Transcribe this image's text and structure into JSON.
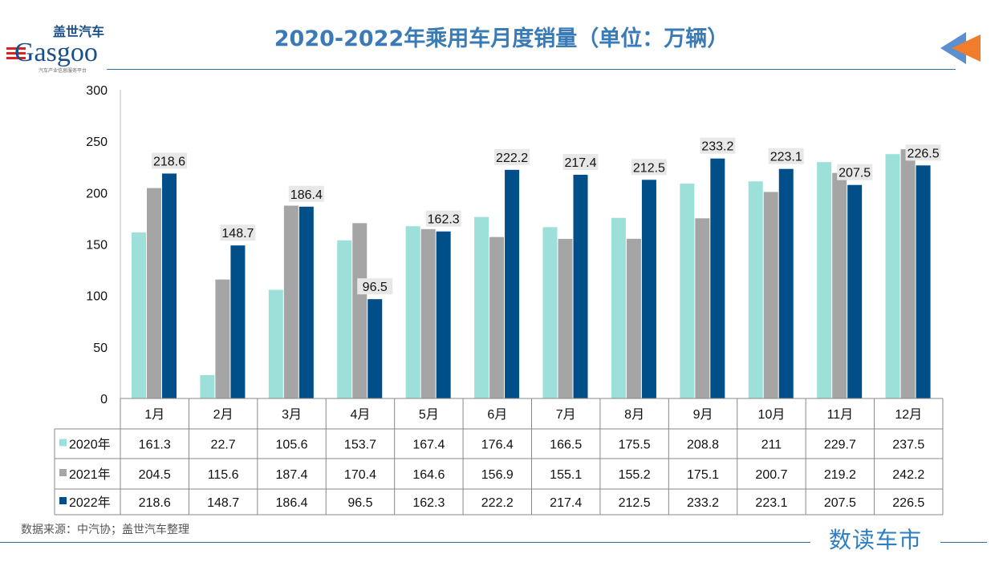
{
  "title": "2020-2022年乘用车月度销量（单位：万辆）",
  "logo": {
    "cn": "盖世汽车",
    "en": "Gasgoo",
    "tagline": "汽车产业信息服务平台"
  },
  "source": "数据来源：中汽协；盖世汽车整理",
  "brand": "数读车市",
  "colors": {
    "2020": "#9de0d9",
    "2021": "#a5a5a5",
    "2022": "#004f88",
    "title": "#3a7bb5"
  },
  "chart_data": {
    "type": "bar",
    "title": "2020-2022年乘用车月度销量（单位：万辆）",
    "categories": [
      "1月",
      "2月",
      "3月",
      "4月",
      "5月",
      "6月",
      "7月",
      "8月",
      "9月",
      "10月",
      "11月",
      "12月"
    ],
    "ylim": [
      0,
      300
    ],
    "yticks": [
      0,
      50,
      100,
      150,
      200,
      250,
      300
    ],
    "grid": false,
    "legend": "data-table",
    "series": [
      {
        "name": "2020年",
        "values": [
          161.3,
          22.7,
          105.6,
          153.7,
          167.4,
          176.4,
          166.5,
          175.5,
          208.8,
          211,
          229.7,
          237.5
        ]
      },
      {
        "name": "2021年",
        "values": [
          204.5,
          115.6,
          187.4,
          170.4,
          164.6,
          156.9,
          155.1,
          155.2,
          175.1,
          200.7,
          219.2,
          242.2
        ]
      },
      {
        "name": "2022年",
        "values": [
          218.6,
          148.7,
          186.4,
          96.5,
          162.3,
          222.2,
          217.4,
          212.5,
          233.2,
          223.1,
          207.5,
          226.5
        ],
        "data_labels": true
      }
    ]
  }
}
